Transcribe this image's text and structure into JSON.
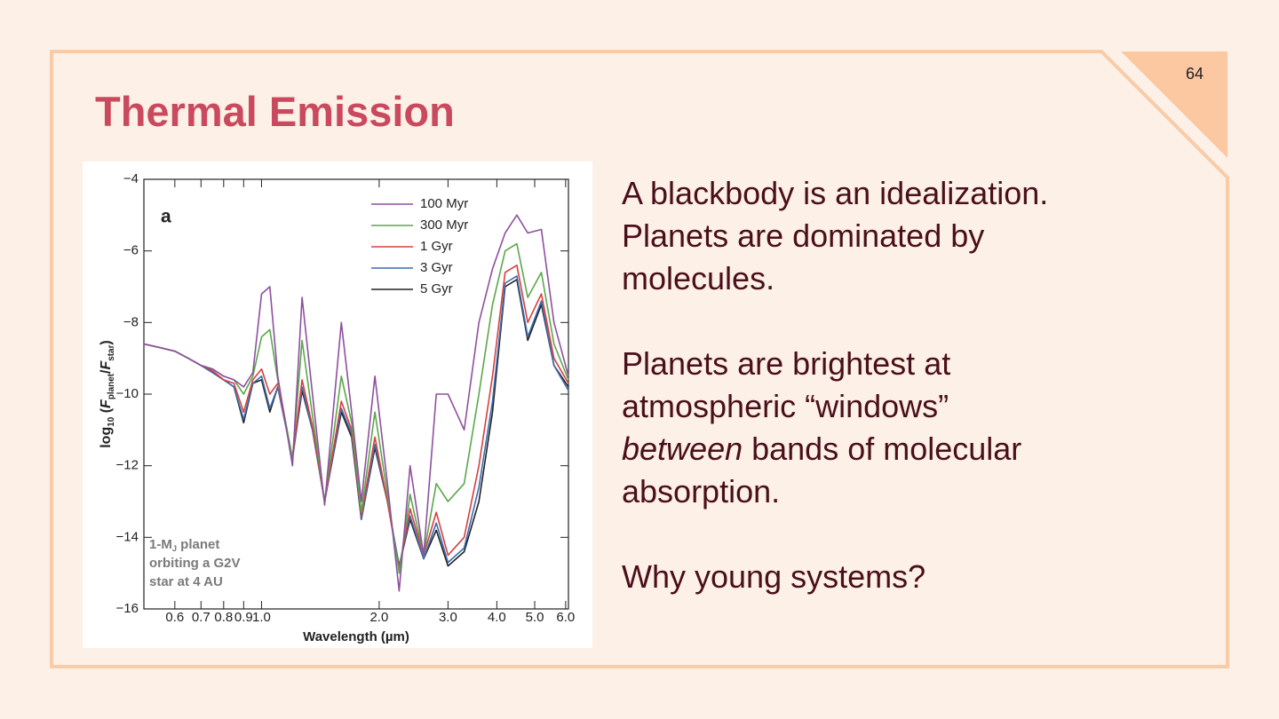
{
  "slide": {
    "page_number": "64",
    "title": "Thermal Emission",
    "body": [
      [
        [
          {
            "text": "A blackbody is an idealization."
          }
        ],
        [
          {
            "text": "Planets are dominated by"
          }
        ],
        [
          {
            "text": "molecules."
          }
        ]
      ],
      [
        [
          {
            "text": "Planets are brightest at"
          }
        ],
        [
          {
            "text": "atmospheric “windows”"
          }
        ],
        [
          {
            "text": "between",
            "italic": true
          },
          {
            "text": " bands of molecular"
          }
        ],
        [
          {
            "text": "absorption."
          }
        ]
      ],
      [
        [
          {
            "text": "Why young systems?"
          }
        ]
      ]
    ]
  },
  "chart_data": {
    "type": "line",
    "xlabel": "Wavelength (µm)",
    "ylabel": [
      {
        "text": "log"
      },
      {
        "text": "10",
        "sub": true
      },
      {
        "text": " ("
      },
      {
        "text": "F",
        "italic": true
      },
      {
        "text": "planet",
        "sub": true
      },
      {
        "text": "/"
      },
      {
        "text": "F",
        "italic": true
      },
      {
        "text": "star",
        "sub": true
      },
      {
        "text": ")"
      }
    ],
    "panel_label": "a",
    "annotation": [
      [
        {
          "text": "1-M"
        },
        {
          "text": "J",
          "sub": true
        },
        {
          "text": " planet"
        }
      ],
      [
        {
          "text": "orbiting a G2V"
        }
      ],
      [
        {
          "text": "star at 4 AU"
        }
      ]
    ],
    "log_x": true,
    "xlim": [
      0.5,
      6.1
    ],
    "xticks": [
      0.6,
      0.7,
      0.8,
      0.9,
      {
        "value": 1,
        "label": "1.0"
      },
      {
        "value": 2,
        "label": "2.0"
      },
      {
        "value": 3,
        "label": "3.0"
      },
      {
        "value": 4,
        "label": "4.0"
      },
      {
        "value": 5,
        "label": "5.0"
      },
      {
        "value": 6,
        "label": "6.0"
      }
    ],
    "ylim": [
      -16,
      -4
    ],
    "yticks": [
      {
        "value": -16,
        "label": "−16"
      },
      {
        "value": -14,
        "label": "−14"
      },
      {
        "value": -12,
        "label": "−12"
      },
      {
        "value": -10,
        "label": "−10"
      },
      {
        "value": -8,
        "label": "−8"
      },
      {
        "value": -6,
        "label": "−6"
      },
      {
        "value": -4,
        "label": "−4"
      }
    ],
    "x": [
      0.5,
      0.55,
      0.6,
      0.65,
      0.7,
      0.75,
      0.8,
      0.85,
      0.9,
      0.95,
      1.0,
      1.05,
      1.1,
      1.2,
      1.27,
      1.35,
      1.45,
      1.6,
      1.7,
      1.8,
      1.95,
      2.1,
      2.25,
      2.4,
      2.6,
      2.8,
      3.0,
      3.3,
      3.6,
      3.9,
      4.2,
      4.5,
      4.8,
      5.2,
      5.6,
      6.1
    ],
    "series": [
      {
        "name": "100 Myr",
        "color": "#8e4fa0",
        "values": [
          -8.6,
          -8.7,
          -8.8,
          -9.0,
          -9.2,
          -9.3,
          -9.5,
          -9.6,
          -9.8,
          -9.4,
          -7.2,
          -7.0,
          -9.5,
          -12,
          -7.3,
          -10,
          -13.1,
          -8,
          -10.5,
          -13,
          -9.5,
          -12.5,
          -15.5,
          -12,
          -14.5,
          -10,
          -10,
          -11,
          -8,
          -6.5,
          -5.5,
          -5,
          -5.5,
          -5.4,
          -8,
          -9.5
        ]
      },
      {
        "name": "300 Myr",
        "color": "#5aa84a",
        "values": [
          -8.6,
          -8.7,
          -8.8,
          -9.0,
          -9.2,
          -9.3,
          -9.5,
          -9.6,
          -10.0,
          -9.5,
          -8.4,
          -8.2,
          -9.6,
          -11.8,
          -8.5,
          -10.6,
          -13,
          -9.5,
          -10.8,
          -13.3,
          -10.5,
          -12.8,
          -15,
          -12.8,
          -14.5,
          -12.5,
          -13,
          -12.5,
          -10,
          -7.5,
          -6,
          -5.8,
          -7.3,
          -6.6,
          -8.6,
          -9.6
        ]
      },
      {
        "name": "1 Gyr",
        "color": "#d64040",
        "values": [
          -8.6,
          -8.7,
          -8.8,
          -9.0,
          -9.2,
          -9.35,
          -9.6,
          -9.7,
          -10.5,
          -9.6,
          -9.3,
          -10,
          -9.7,
          -11.8,
          -9.6,
          -10.9,
          -13,
          -10.2,
          -11,
          -13.4,
          -11.2,
          -13,
          -14.9,
          -13.2,
          -14.5,
          -13.3,
          -14.5,
          -14,
          -12,
          -9.5,
          -6.6,
          -6.4,
          -8,
          -7.2,
          -9,
          -9.7
        ]
      },
      {
        "name": "3 Gyr",
        "color": "#3a6cb0",
        "values": [
          -8.6,
          -8.7,
          -8.8,
          -9.0,
          -9.2,
          -9.4,
          -9.6,
          -9.8,
          -10.7,
          -9.7,
          -9.5,
          -10.4,
          -9.8,
          -11.8,
          -9.8,
          -11,
          -13,
          -10.4,
          -11.1,
          -13.5,
          -11.4,
          -13,
          -14.8,
          -13.4,
          -14.6,
          -13.6,
          -14.7,
          -14.3,
          -12.6,
          -10.2,
          -6.9,
          -6.7,
          -8.4,
          -7.4,
          -9.2,
          -9.9
        ]
      },
      {
        "name": "5 Gyr",
        "color": "#222222",
        "values": [
          -8.6,
          -8.7,
          -8.8,
          -9.0,
          -9.2,
          -9.4,
          -9.6,
          -9.8,
          -10.8,
          -9.7,
          -9.6,
          -10.5,
          -9.8,
          -11.8,
          -9.9,
          -11,
          -13,
          -10.5,
          -11.2,
          -13.5,
          -11.5,
          -13,
          -14.8,
          -13.5,
          -14.6,
          -13.8,
          -14.8,
          -14.4,
          -13,
          -10.5,
          -7,
          -6.8,
          -8.5,
          -7.5,
          -9.2,
          -9.8
        ]
      }
    ]
  }
}
